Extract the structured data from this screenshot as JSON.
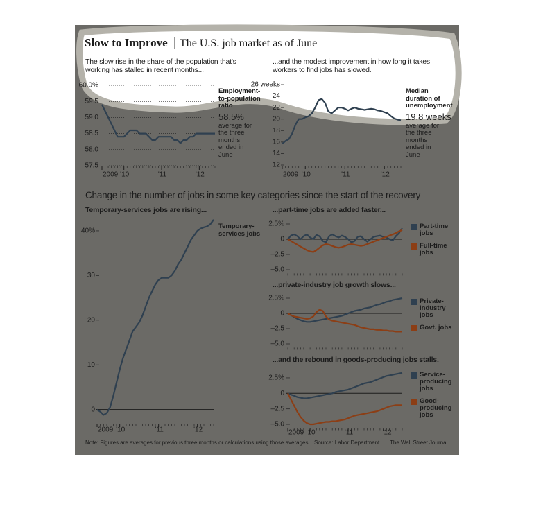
{
  "header": {
    "title": "Slow to Improve",
    "subtitle": "The U.S. job market as of June"
  },
  "section_title": "Change in the number of jobs in some key categories since the start of the recovery",
  "footer": {
    "note": "Note: Figures are averages for previous three months or calculations using those averages",
    "source": "Source: Labor Department",
    "credit": "The Wall Street Journal"
  },
  "chart_data": [
    {
      "type": "line",
      "title": "The slow rise in the share of the population that's working has stalled in recent months...",
      "categories": [
        "2009",
        null,
        null,
        null,
        null,
        null,
        null,
        "'10",
        null,
        null,
        null,
        null,
        null,
        null,
        null,
        null,
        null,
        null,
        null,
        "'11",
        null,
        null,
        null,
        null,
        null,
        null,
        null,
        null,
        null,
        null,
        null,
        "'12",
        null,
        null,
        null,
        null,
        null
      ],
      "series": [
        {
          "name": "Employment-to-population ratio",
          "color": "#2f4050",
          "values": [
            59.4,
            59.2,
            59.0,
            58.8,
            58.6,
            58.4,
            58.4,
            58.4,
            58.5,
            58.6,
            58.6,
            58.6,
            58.5,
            58.5,
            58.5,
            58.4,
            58.3,
            58.3,
            58.4,
            58.4,
            58.4,
            58.4,
            58.4,
            58.3,
            58.3,
            58.2,
            58.3,
            58.3,
            58.4,
            58.4,
            58.5,
            58.5,
            58.5,
            58.5,
            58.5,
            58.5,
            58.5
          ]
        }
      ],
      "annotation": {
        "value": "58.5%",
        "note": "average for the three months ended in June"
      },
      "ylim": [
        57.5,
        60
      ],
      "yticks": [
        57.5,
        {
          "value": 58,
          "label": "58.0"
        },
        58.5,
        {
          "value": 59,
          "label": "59.0"
        },
        59.5,
        {
          "value": 60,
          "label": "60.0%"
        }
      ],
      "grid": true,
      "legend": false
    },
    {
      "type": "line",
      "title": "...and the modest improvement in how long it takes workers to find jobs has slowed.",
      "categories": [
        "2009",
        null,
        null,
        null,
        null,
        null,
        null,
        "'10",
        null,
        null,
        null,
        null,
        null,
        null,
        null,
        null,
        null,
        null,
        null,
        "'11",
        null,
        null,
        null,
        null,
        null,
        null,
        null,
        null,
        null,
        null,
        null,
        "'12",
        null,
        null,
        null,
        null,
        null
      ],
      "series": [
        {
          "name": "Median duration of unemployment",
          "color": "#2f4050",
          "values": [
            15.7,
            16.2,
            16.5,
            17.5,
            19.0,
            20.0,
            20.0,
            20.3,
            20.5,
            21.0,
            22.0,
            23.3,
            23.5,
            22.8,
            21.3,
            21.0,
            21.5,
            22.0,
            22.0,
            21.8,
            21.5,
            21.8,
            22.0,
            21.8,
            21.7,
            21.6,
            21.7,
            21.8,
            21.7,
            21.5,
            21.4,
            21.2,
            21.0,
            20.5,
            20.1,
            19.9,
            19.8
          ]
        }
      ],
      "annotation": {
        "value": "19.8 weeks",
        "note": "average for the three months ended in June"
      },
      "ylim": [
        12,
        26
      ],
      "yticks": [
        12,
        14,
        16,
        18,
        20,
        22,
        24,
        {
          "value": 26,
          "label": "26 weeks"
        }
      ],
      "grid": false,
      "legend": false
    },
    {
      "type": "line",
      "title": "Temporary-services jobs are rising...",
      "categories": [
        "2009",
        null,
        null,
        null,
        null,
        null,
        null,
        "'10",
        null,
        null,
        null,
        null,
        null,
        null,
        null,
        null,
        null,
        null,
        null,
        "'11",
        null,
        null,
        null,
        null,
        null,
        null,
        null,
        null,
        null,
        null,
        null,
        "'12",
        null,
        null,
        null,
        null,
        null
      ],
      "series": [
        {
          "name": "Temporary-services jobs",
          "color": "#2f4050",
          "values": [
            0,
            -0.5,
            -1.2,
            -0.8,
            0.5,
            3,
            6,
            9,
            11.5,
            13.5,
            15.5,
            17.5,
            18.5,
            19.5,
            21,
            23,
            25,
            26.5,
            28,
            29,
            29.5,
            29.5,
            29.5,
            30,
            31,
            32.5,
            33.5,
            35,
            36.5,
            38,
            39,
            40,
            40.5,
            40.8,
            41,
            41.5,
            42.5
          ]
        }
      ],
      "ylim": [
        -3,
        43
      ],
      "yticks": [
        0,
        10,
        20,
        30,
        {
          "value": 40,
          "label": "40%"
        }
      ],
      "grid": false,
      "legend": false
    },
    {
      "type": "line",
      "title": "...part-time jobs are added faster...",
      "categories": [
        null,
        null,
        null,
        null,
        null,
        null,
        null,
        null,
        null,
        null,
        null,
        null,
        null,
        null,
        null,
        null,
        null,
        null,
        null,
        null,
        null,
        null,
        null,
        null,
        null,
        null,
        null,
        null,
        null,
        null,
        null,
        null,
        null,
        null,
        null,
        null,
        null
      ],
      "series": [
        {
          "name": "Part-time jobs",
          "color": "#2f4050",
          "values": [
            0,
            0.6,
            0.8,
            0.5,
            0,
            0.5,
            0.8,
            0.3,
            0,
            0.7,
            0.5,
            -0.3,
            -0.5,
            0.5,
            0.8,
            0.5,
            0.3,
            0.6,
            0.4,
            0,
            -0.5,
            -0.3,
            0.4,
            0.5,
            0,
            -0.4,
            0,
            0.4,
            0.5,
            0.6,
            0.4,
            0.3,
            0,
            -0.2,
            0.5,
            1.0,
            1.8
          ]
        },
        {
          "name": "Full-time jobs",
          "color": "#8c3e15",
          "values": [
            0,
            -0.3,
            -0.6,
            -0.9,
            -1.2,
            -1.5,
            -1.8,
            -2.0,
            -2.1,
            -1.8,
            -1.4,
            -1.0,
            -0.8,
            -0.9,
            -1.1,
            -1.3,
            -1.4,
            -1.3,
            -1.1,
            -0.9,
            -0.8,
            -0.9,
            -1.0,
            -1.1,
            -1.0,
            -0.8,
            -0.6,
            -0.4,
            -0.2,
            0,
            0.2,
            0.4,
            0.6,
            0.8,
            1.0,
            1.3,
            1.5
          ]
        }
      ],
      "ylim": [
        -5.5,
        3.5
      ],
      "yticks": [
        {
          "value": -5,
          "label": "–5.0"
        },
        {
          "value": -2.5,
          "label": "–2.5"
        },
        0,
        {
          "value": 2.5,
          "label": "2.5%"
        }
      ],
      "grid": false,
      "legend": true
    },
    {
      "type": "line",
      "title": "...private-industry job growth slows...",
      "categories": [
        null,
        null,
        null,
        null,
        null,
        null,
        null,
        null,
        null,
        null,
        null,
        null,
        null,
        null,
        null,
        null,
        null,
        null,
        null,
        null,
        null,
        null,
        null,
        null,
        null,
        null,
        null,
        null,
        null,
        null,
        null,
        null,
        null,
        null,
        null,
        null,
        null
      ],
      "series": [
        {
          "name": "Private-industry jobs",
          "color": "#2f4050",
          "values": [
            0,
            -0.3,
            -0.6,
            -0.9,
            -1.1,
            -1.3,
            -1.4,
            -1.4,
            -1.3,
            -1.2,
            -1.1,
            -1.0,
            -0.9,
            -0.8,
            -0.7,
            -0.6,
            -0.5,
            -0.4,
            -0.2,
            0,
            0.2,
            0.4,
            0.5,
            0.6,
            0.8,
            0.9,
            1.0,
            1.2,
            1.4,
            1.5,
            1.7,
            1.9,
            2.0,
            2.2,
            2.3,
            2.4,
            2.5
          ]
        },
        {
          "name": "Govt. jobs",
          "color": "#8c3e15",
          "values": [
            0,
            -0.3,
            -0.5,
            -0.6,
            -0.7,
            -0.8,
            -0.9,
            -0.8,
            -0.5,
            0.2,
            0.6,
            0.4,
            -0.5,
            -1.0,
            -1.2,
            -1.3,
            -1.4,
            -1.5,
            -1.6,
            -1.7,
            -1.8,
            -1.9,
            -2.1,
            -2.3,
            -2.4,
            -2.5,
            -2.6,
            -2.6,
            -2.7,
            -2.7,
            -2.8,
            -2.8,
            -2.9,
            -2.9,
            -3.0,
            -3.0,
            -3.0
          ]
        }
      ],
      "ylim": [
        -5.5,
        3.5
      ],
      "yticks": [
        {
          "value": -5,
          "label": "–5.0"
        },
        {
          "value": -2.5,
          "label": "–2.5"
        },
        0,
        {
          "value": 2.5,
          "label": "2.5%"
        }
      ],
      "grid": false,
      "legend": true
    },
    {
      "type": "line",
      "title": "...and the rebound in goods-producing jobs stalls.",
      "categories": [
        "2009",
        null,
        null,
        null,
        null,
        null,
        null,
        "'10",
        null,
        null,
        null,
        null,
        null,
        null,
        null,
        null,
        null,
        null,
        null,
        "'11",
        null,
        null,
        null,
        null,
        null,
        null,
        null,
        null,
        null,
        null,
        null,
        "'12",
        null,
        null,
        null,
        null,
        null
      ],
      "series": [
        {
          "name": "Service-producing jobs",
          "color": "#2f4050",
          "values": [
            0,
            -0.2,
            -0.4,
            -0.6,
            -0.7,
            -0.8,
            -0.8,
            -0.7,
            -0.6,
            -0.5,
            -0.4,
            -0.3,
            -0.2,
            -0.1,
            0,
            0.2,
            0.3,
            0.4,
            0.5,
            0.6,
            0.8,
            1.0,
            1.2,
            1.4,
            1.6,
            1.7,
            1.8,
            2.0,
            2.2,
            2.4,
            2.6,
            2.8,
            2.9,
            3.0,
            3.1,
            3.2,
            3.3
          ]
        },
        {
          "name": "Good-producing jobs",
          "color": "#8c3e15",
          "values": [
            0,
            -1.0,
            -2.0,
            -3.0,
            -3.8,
            -4.4,
            -4.8,
            -5.0,
            -5.0,
            -4.9,
            -4.8,
            -4.7,
            -4.6,
            -4.6,
            -4.5,
            -4.5,
            -4.4,
            -4.3,
            -4.2,
            -4.0,
            -3.8,
            -3.6,
            -3.5,
            -3.4,
            -3.3,
            -3.2,
            -3.1,
            -3.0,
            -2.9,
            -2.7,
            -2.5,
            -2.3,
            -2.1,
            -2.0,
            -1.9,
            -1.9,
            -1.9
          ]
        }
      ],
      "ylim": [
        -5.5,
        3.5
      ],
      "yticks": [
        {
          "value": -5,
          "label": "–5.0"
        },
        {
          "value": -2.5,
          "label": "–2.5"
        },
        0,
        {
          "value": 2.5,
          "label": "2.5%"
        }
      ],
      "grid": false,
      "legend": true
    }
  ]
}
